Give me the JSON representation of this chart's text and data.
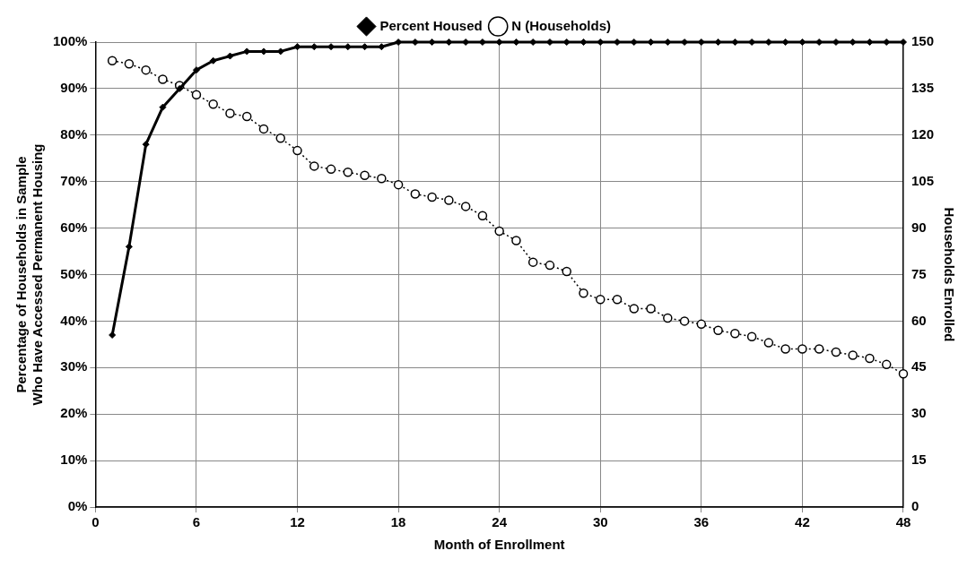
{
  "chart_data": {
    "type": "line",
    "xlabel": "Month of Enrollment",
    "ylabel": "Percentage of Households in Sample Who Have Accessed Permanent Housing",
    "y2label": "Households Enrolled",
    "x": [
      1,
      2,
      3,
      4,
      5,
      6,
      7,
      8,
      9,
      10,
      11,
      12,
      13,
      14,
      15,
      16,
      17,
      18,
      19,
      20,
      21,
      22,
      23,
      24,
      25,
      26,
      27,
      28,
      29,
      30,
      31,
      32,
      33,
      34,
      35,
      36,
      37,
      38,
      39,
      40,
      41,
      42,
      43,
      44,
      45,
      46,
      47,
      48
    ],
    "series": [
      {
        "name": "Percent Housed",
        "color": "#000000",
        "marker": "diamond",
        "line_style": "solid",
        "values": [
          37,
          56,
          78,
          86,
          90,
          94,
          96,
          97,
          98,
          98,
          98,
          99,
          99,
          99,
          99,
          99,
          99,
          100,
          100,
          100,
          100,
          100,
          100,
          100,
          100,
          100,
          100,
          100,
          100,
          100,
          100,
          100,
          100,
          100,
          100,
          100,
          100,
          100,
          100,
          100,
          100,
          100,
          100,
          100,
          100,
          100,
          100,
          100
        ]
      },
      {
        "name": "N (Households)",
        "color": "#000000",
        "marker": "circle",
        "line_style": "dotted",
        "axis": "y2",
        "values": [
          144,
          143,
          141,
          138,
          136,
          133,
          130,
          127,
          126,
          122,
          119,
          115,
          110,
          109,
          108,
          107,
          106,
          104,
          101,
          100,
          99,
          97,
          94,
          89,
          86,
          79,
          78,
          76,
          69,
          67,
          67,
          64,
          64,
          61,
          60,
          59,
          57,
          56,
          55,
          53,
          51,
          51,
          51,
          50,
          49,
          48,
          46,
          43
        ]
      }
    ],
    "xlim": [
      0,
      48
    ],
    "xticks": [
      0,
      6,
      12,
      18,
      24,
      30,
      36,
      42,
      48
    ],
    "ylim": [
      0,
      100
    ],
    "yticks": [
      {
        "value": 0,
        "label": "0%"
      },
      {
        "value": 10,
        "label": "10%"
      },
      {
        "value": 20,
        "label": "20%"
      },
      {
        "value": 30,
        "label": "30%"
      },
      {
        "value": 40,
        "label": "40%"
      },
      {
        "value": 50,
        "label": "50%"
      },
      {
        "value": 60,
        "label": "60%"
      },
      {
        "value": 70,
        "label": "70%"
      },
      {
        "value": 80,
        "label": "80%"
      },
      {
        "value": 90,
        "label": "90%"
      },
      {
        "value": 100,
        "label": "100%"
      }
    ],
    "y2lim": [
      0,
      150
    ],
    "y2ticks": [
      0,
      15,
      30,
      45,
      60,
      75,
      90,
      105,
      120,
      135,
      150
    ],
    "grid": true,
    "legend": "top"
  }
}
